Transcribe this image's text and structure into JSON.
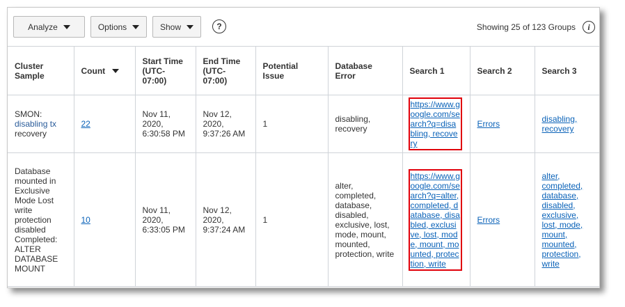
{
  "toolbar": {
    "analyze": "Analyze",
    "options": "Options",
    "show": "Show",
    "help": "?",
    "showing": "Showing 25 of 123 Groups",
    "info": "i"
  },
  "columns": [
    "Cluster Sample",
    "Count",
    "Start Time (UTC-07:00)",
    "End Time (UTC-07:00)",
    "Potential Issue",
    "Database Error",
    "Search 1",
    "Search 2",
    "Search 3"
  ],
  "rows": [
    {
      "cluster_prefix": "SMON:",
      "cluster_highlight": "disabling tx",
      "cluster_suffix": "recovery",
      "count": "22",
      "start": "Nov 11, 2020, 6:30:58 PM",
      "end": "Nov 12, 2020, 9:37:26 AM",
      "issue": "1",
      "db_error": "disabling, recovery",
      "search1": "https://www.google.com/search?q=disabling, recovery",
      "search2": "Errors",
      "search3": "disabling, recovery"
    },
    {
      "cluster_prefix": "Database mounted in Exclusive Mode Lost write protection disabled Completed: ALTER DATABASE MOUNT",
      "cluster_highlight": "",
      "cluster_suffix": "",
      "count": "10",
      "start": "Nov 11, 2020, 6:33:05 PM",
      "end": "Nov 12, 2020, 9:37:24 AM",
      "issue": "1",
      "db_error": "alter, completed, database, disabled, exclusive, lost, mode, mount, mounted, protection, write",
      "search1": "https://www.google.com/search?q=alter, completed, database, disabled, exclusive, lost, mode, mount, mounted, protection, write",
      "search2": "Errors",
      "search3": "alter, completed, database, disabled, exclusive, lost, mode, mount, mounted, protection, write"
    }
  ],
  "colors": {
    "link": "#0a62b8",
    "highlight_border": "#e0000a"
  }
}
